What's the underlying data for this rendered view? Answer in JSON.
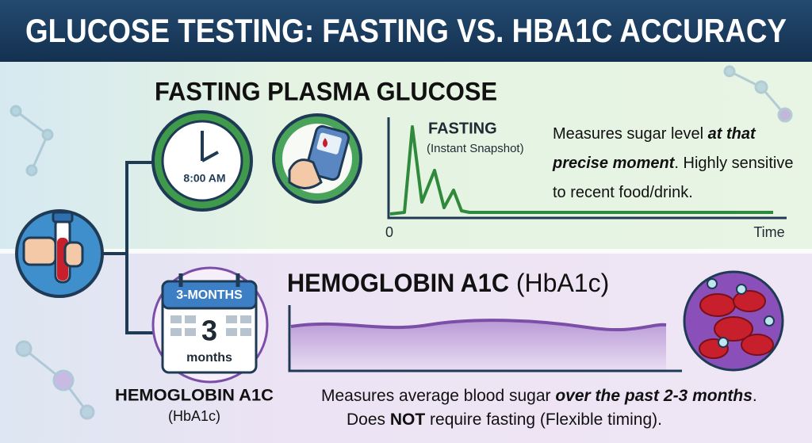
{
  "title": "GLUCOSE TESTING: FASTING VS. HBA1C ACCURACY",
  "fasting": {
    "heading": "FASTING PLASMA GLUCOSE",
    "clock_time": "8:00 AM",
    "chart_label": "FASTING",
    "chart_sublabel": "(Instant Snapshot)",
    "axis_origin": "0",
    "axis_x": "Time",
    "description": {
      "part1": "Measures sugar level ",
      "emphasis": "at that precise moment",
      "part2": ". Highly sensitive to recent food/drink."
    }
  },
  "hba1c": {
    "heading": "HEMOGLOBIN A1C",
    "heading_abbr": " (HbA1c)",
    "calendar_header": "3-MONTHS",
    "calendar_number": "3",
    "calendar_unit": "months",
    "side_label": "HEMOGLOBIN A1C",
    "side_abbr": "(HbA1c)",
    "description": {
      "part1": "Measures average blood sugar ",
      "emphasis": "over the past 2-3 months",
      "part2": ".",
      "part3": "Does ",
      "strong": "NOT",
      "part4": " require fasting (Flexible timing)."
    }
  }
}
